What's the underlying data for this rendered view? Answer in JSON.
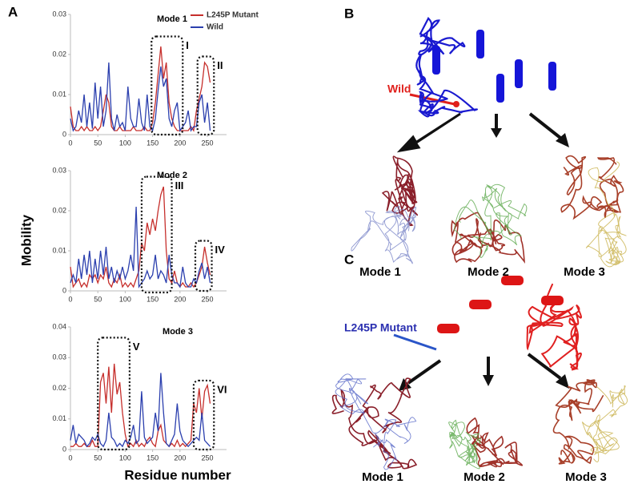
{
  "chart_data": [
    {
      "type": "line",
      "title": "Mode 1",
      "legend": "upper right",
      "x": [
        0,
        5,
        10,
        15,
        20,
        25,
        30,
        35,
        40,
        45,
        50,
        55,
        60,
        65,
        70,
        75,
        80,
        85,
        90,
        95,
        100,
        105,
        110,
        115,
        120,
        125,
        130,
        135,
        140,
        145,
        150,
        155,
        160,
        165,
        170,
        175,
        180,
        185,
        190,
        195,
        200,
        205,
        210,
        215,
        220,
        225,
        230,
        235,
        240,
        245,
        250,
        255
      ],
      "series": [
        {
          "name": "L245P Mutant",
          "color": "#c62f2c",
          "values": [
            0.007,
            0.002,
            0.001,
            0.001,
            0.002,
            0.001,
            0.002,
            0.001,
            0.001,
            0.002,
            0.001,
            0.002,
            0.006,
            0.01,
            0.008,
            0.002,
            0.001,
            0.001,
            0.002,
            0.001,
            0.001,
            0.001,
            0.001,
            0.002,
            0.001,
            0.001,
            0.001,
            0.002,
            0.001,
            0.001,
            0.003,
            0.008,
            0.015,
            0.022,
            0.014,
            0.018,
            0.008,
            0.004,
            0.002,
            0.001,
            0.001,
            0.001,
            0.001,
            0.001,
            0.002,
            0.001,
            0.006,
            0.009,
            0.012,
            0.018,
            0.017,
            0.013
          ]
        },
        {
          "name": "Wild",
          "color": "#2b3fae",
          "values": [
            0.004,
            0.001,
            0.002,
            0.006,
            0.003,
            0.01,
            0.002,
            0.008,
            0.0015,
            0.013,
            0.004,
            0.012,
            0.002,
            0.006,
            0.018,
            0.004,
            0.001,
            0.005,
            0.002,
            0.003,
            0.001,
            0.012,
            0.004,
            0.002,
            0.002,
            0.009,
            0.003,
            0.001,
            0.01,
            0.002,
            0.001,
            0.004,
            0.011,
            0.017,
            0.012,
            0.014,
            0.004,
            0.002,
            0.006,
            0.008,
            0.001,
            0.002,
            0.003,
            0.006,
            0.001,
            0.002,
            0.002,
            0.008,
            0.01,
            0.003,
            0.008,
            0.001
          ]
        }
      ],
      "xlim": [
        0,
        285
      ],
      "xticks": [
        0,
        50,
        100,
        150,
        200,
        250
      ],
      "ylim": [
        0,
        0.03
      ],
      "yticks": [
        0,
        0.01,
        0.02,
        0.03
      ],
      "annotations": [
        "I",
        "II"
      ]
    },
    {
      "type": "line",
      "title": "Mode 2",
      "x": [
        0,
        5,
        10,
        15,
        20,
        25,
        30,
        35,
        40,
        45,
        50,
        55,
        60,
        65,
        70,
        75,
        80,
        85,
        90,
        95,
        100,
        105,
        110,
        115,
        120,
        125,
        130,
        135,
        140,
        145,
        150,
        155,
        160,
        165,
        170,
        175,
        180,
        185,
        190,
        195,
        200,
        205,
        210,
        215,
        220,
        225,
        230,
        235,
        240,
        245,
        250,
        255
      ],
      "series": [
        {
          "name": "L245P Mutant",
          "color": "#c62f2c",
          "values": [
            0.006,
            0.001,
            0.002,
            0.003,
            0.001,
            0.002,
            0.001,
            0.004,
            0.003,
            0.004,
            0.002,
            0.004,
            0.003,
            0.006,
            0.002,
            0.001,
            0.003,
            0.002,
            0.004,
            0.001,
            0.002,
            0.001,
            0.002,
            0.001,
            0.003,
            0.005,
            0.012,
            0.01,
            0.017,
            0.014,
            0.018,
            0.015,
            0.02,
            0.024,
            0.026,
            0.01,
            0.003,
            0.002,
            0.005,
            0.002,
            0.001,
            0.002,
            0.001,
            0.001,
            0.002,
            0.001,
            0.002,
            0.004,
            0.006,
            0.011,
            0.007,
            0.004
          ]
        },
        {
          "name": "Wild",
          "color": "#2b3fae",
          "values": [
            0.002,
            0.004,
            0.002,
            0.008,
            0.003,
            0.009,
            0.004,
            0.01,
            0.002,
            0.008,
            0.003,
            0.01,
            0.004,
            0.011,
            0.003,
            0.006,
            0.002,
            0.005,
            0.003,
            0.006,
            0.003,
            0.005,
            0.009,
            0.005,
            0.021,
            0.001,
            0.002,
            0.003,
            0.005,
            0.003,
            0.004,
            0.009,
            0.003,
            0.005,
            0.004,
            0.002,
            0.009,
            0.004,
            0.002,
            0.002,
            0.001,
            0.006,
            0.002,
            0.001,
            0.001,
            0.003,
            0.002,
            0.005,
            0.007,
            0.003,
            0.006,
            0.002
          ]
        }
      ],
      "xlim": [
        0,
        285
      ],
      "xticks": [
        0,
        50,
        100,
        150,
        200,
        250
      ],
      "ylim": [
        0,
        0.03
      ],
      "yticks": [
        0,
        0.01,
        0.02,
        0.03
      ],
      "annotations": [
        "III",
        "IV"
      ]
    },
    {
      "type": "line",
      "title": "Mode 3",
      "x": [
        0,
        5,
        10,
        15,
        20,
        25,
        30,
        35,
        40,
        45,
        50,
        55,
        60,
        65,
        70,
        75,
        80,
        85,
        90,
        95,
        100,
        105,
        110,
        115,
        120,
        125,
        130,
        135,
        140,
        145,
        150,
        155,
        160,
        165,
        170,
        175,
        180,
        185,
        190,
        195,
        200,
        205,
        210,
        215,
        220,
        225,
        230,
        235,
        240,
        245,
        250,
        255
      ],
      "series": [
        {
          "name": "L245P Mutant",
          "color": "#c62f2c",
          "values": [
            0.001,
            0.001,
            0.002,
            0.001,
            0.001,
            0.002,
            0.001,
            0.001,
            0.003,
            0.001,
            0.001,
            0.022,
            0.025,
            0.015,
            0.027,
            0.012,
            0.028,
            0.018,
            0.022,
            0.012,
            0.005,
            0.001,
            0.002,
            0.001,
            0.003,
            0.001,
            0.002,
            0.001,
            0.003,
            0.004,
            0.002,
            0.001,
            0.006,
            0.008,
            0.003,
            0.002,
            0.001,
            0.002,
            0.001,
            0.003,
            0.001,
            0.002,
            0.001,
            0.002,
            0.003,
            0.015,
            0.012,
            0.02,
            0.01,
            0.019,
            0.021,
            0.015
          ]
        },
        {
          "name": "Wild",
          "color": "#2b3fae",
          "values": [
            0.003,
            0.008,
            0.002,
            0.005,
            0.004,
            0.003,
            0.001,
            0.002,
            0.004,
            0.003,
            0.005,
            0.002,
            0.001,
            0.003,
            0.012,
            0.004,
            0.003,
            0.001,
            0.002,
            0.001,
            0.003,
            0.002,
            0.004,
            0.008,
            0.002,
            0.003,
            0.019,
            0.004,
            0.002,
            0.003,
            0.004,
            0.012,
            0.006,
            0.025,
            0.012,
            0.002,
            0.001,
            0.003,
            0.005,
            0.015,
            0.006,
            0.003,
            0.002,
            0.001,
            0.002,
            0.003,
            0.004,
            0.003,
            0.012,
            0.003,
            0.002,
            0.001
          ]
        }
      ],
      "xlim": [
        0,
        285
      ],
      "xticks": [
        0,
        50,
        100,
        150,
        200,
        250
      ],
      "ylim": [
        0,
        0.04
      ],
      "yticks": [
        0,
        0.01,
        0.02,
        0.03,
        0.04
      ],
      "annotations": [
        "V",
        "VI"
      ]
    }
  ],
  "figure": {
    "panels": [
      "A",
      "B",
      "C"
    ],
    "y_label": "Mobility",
    "x_label": "Residue number",
    "wild_label": "Wild",
    "mutant_label": "L245P Mutant",
    "b_modes": [
      "Mode 1",
      "Mode 2",
      "Mode 3"
    ],
    "c_modes": [
      "Mode 1",
      "Mode 2",
      "Mode 3"
    ]
  }
}
